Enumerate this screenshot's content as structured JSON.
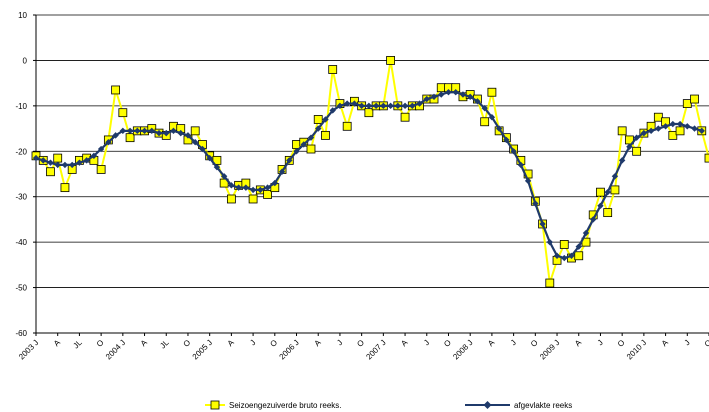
{
  "chart_data": {
    "type": "line",
    "title": "",
    "xlabel": "",
    "ylabel": "",
    "ylim": [
      -60,
      10
    ],
    "yticks": [
      10,
      0,
      -10,
      -20,
      -30,
      -40,
      -50,
      -60
    ],
    "grid": "horizontal",
    "legend_position": "bottom",
    "x_tick_labels": [
      "2003 J",
      "A",
      "JL",
      "O",
      "2004 J",
      "A",
      "JL",
      "O",
      "2005 J",
      "A",
      "J",
      "O",
      "2006 J",
      "A",
      "J",
      "O",
      "2007 J",
      "A",
      "J",
      "O",
      "2008 J",
      "A",
      "J",
      "O",
      "2009 J",
      "A",
      "J",
      "O",
      "2010 J",
      "A",
      "J",
      "O"
    ],
    "series": [
      {
        "name": "Seizoengezuiverde  bruto reeks.",
        "color": "#ffff00",
        "marker": "square",
        "values": [
          -21,
          -22,
          -24.5,
          -21.5,
          -28,
          -24,
          -22,
          -21.5,
          -22,
          -24,
          -17.5,
          -6.5,
          -11.5,
          -17,
          -15.5,
          -15.5,
          -15,
          -16,
          -16.5,
          -14.5,
          -15,
          -17.5,
          -15.5,
          -18.5,
          -21,
          -22,
          -27,
          -30.5,
          -27.5,
          -27,
          -30.5,
          -28.5,
          -29.5,
          -28,
          -24,
          -22,
          -18.5,
          -18,
          -19.5,
          -13,
          -16.5,
          -2,
          -9.5,
          -14.5,
          -9,
          -10,
          -11.5,
          -10,
          -10,
          0,
          -10,
          -12.5,
          -10,
          -10,
          -8.5,
          -8.5,
          -6,
          -6,
          -6,
          -8,
          -7.5,
          -8.5,
          -13.5,
          -7,
          -15.5,
          -17,
          -19.5,
          -22,
          -25,
          -31,
          -36,
          -49,
          -44,
          -40.5,
          -43.5,
          -43,
          -40,
          -34,
          -29,
          -33.5,
          -28.5,
          -15.5,
          -17.5,
          -20,
          -16,
          -14.5,
          -12.5,
          -13.5,
          -16.5,
          -15.5,
          -9.5,
          -8.5,
          -15.5,
          -21.5,
          -21
        ]
      },
      {
        "name": "afgevlakte reeks",
        "color": "#1f3a6b",
        "marker": "diamond",
        "values": [
          -21.5,
          -22,
          -22.5,
          -23,
          -23,
          -23,
          -22.5,
          -22,
          -21,
          -19.5,
          -18,
          -16.5,
          -15.5,
          -15.5,
          -15.5,
          -15.5,
          -15.5,
          -16,
          -16,
          -15.5,
          -16,
          -16.5,
          -18,
          -19.5,
          -21.5,
          -23.5,
          -25.5,
          -27.5,
          -28,
          -28,
          -28.5,
          -28.5,
          -28,
          -27,
          -24.5,
          -22,
          -20,
          -18.5,
          -17,
          -15,
          -13,
          -11,
          -10,
          -9.5,
          -9.5,
          -10,
          -10,
          -10,
          -10,
          -10,
          -10,
          -10,
          -10,
          -9.5,
          -8.5,
          -8,
          -7.5,
          -7,
          -7,
          -7.5,
          -8,
          -9,
          -10.5,
          -12.5,
          -15,
          -17.5,
          -20,
          -23,
          -26.5,
          -31.5,
          -36,
          -40,
          -43,
          -43.5,
          -43,
          -41,
          -38,
          -35,
          -32,
          -29,
          -25.5,
          -22,
          -19,
          -17,
          -16,
          -15.5,
          -15,
          -14.5,
          -14,
          -14,
          -14.5,
          -15,
          -15.5
        ]
      }
    ]
  }
}
